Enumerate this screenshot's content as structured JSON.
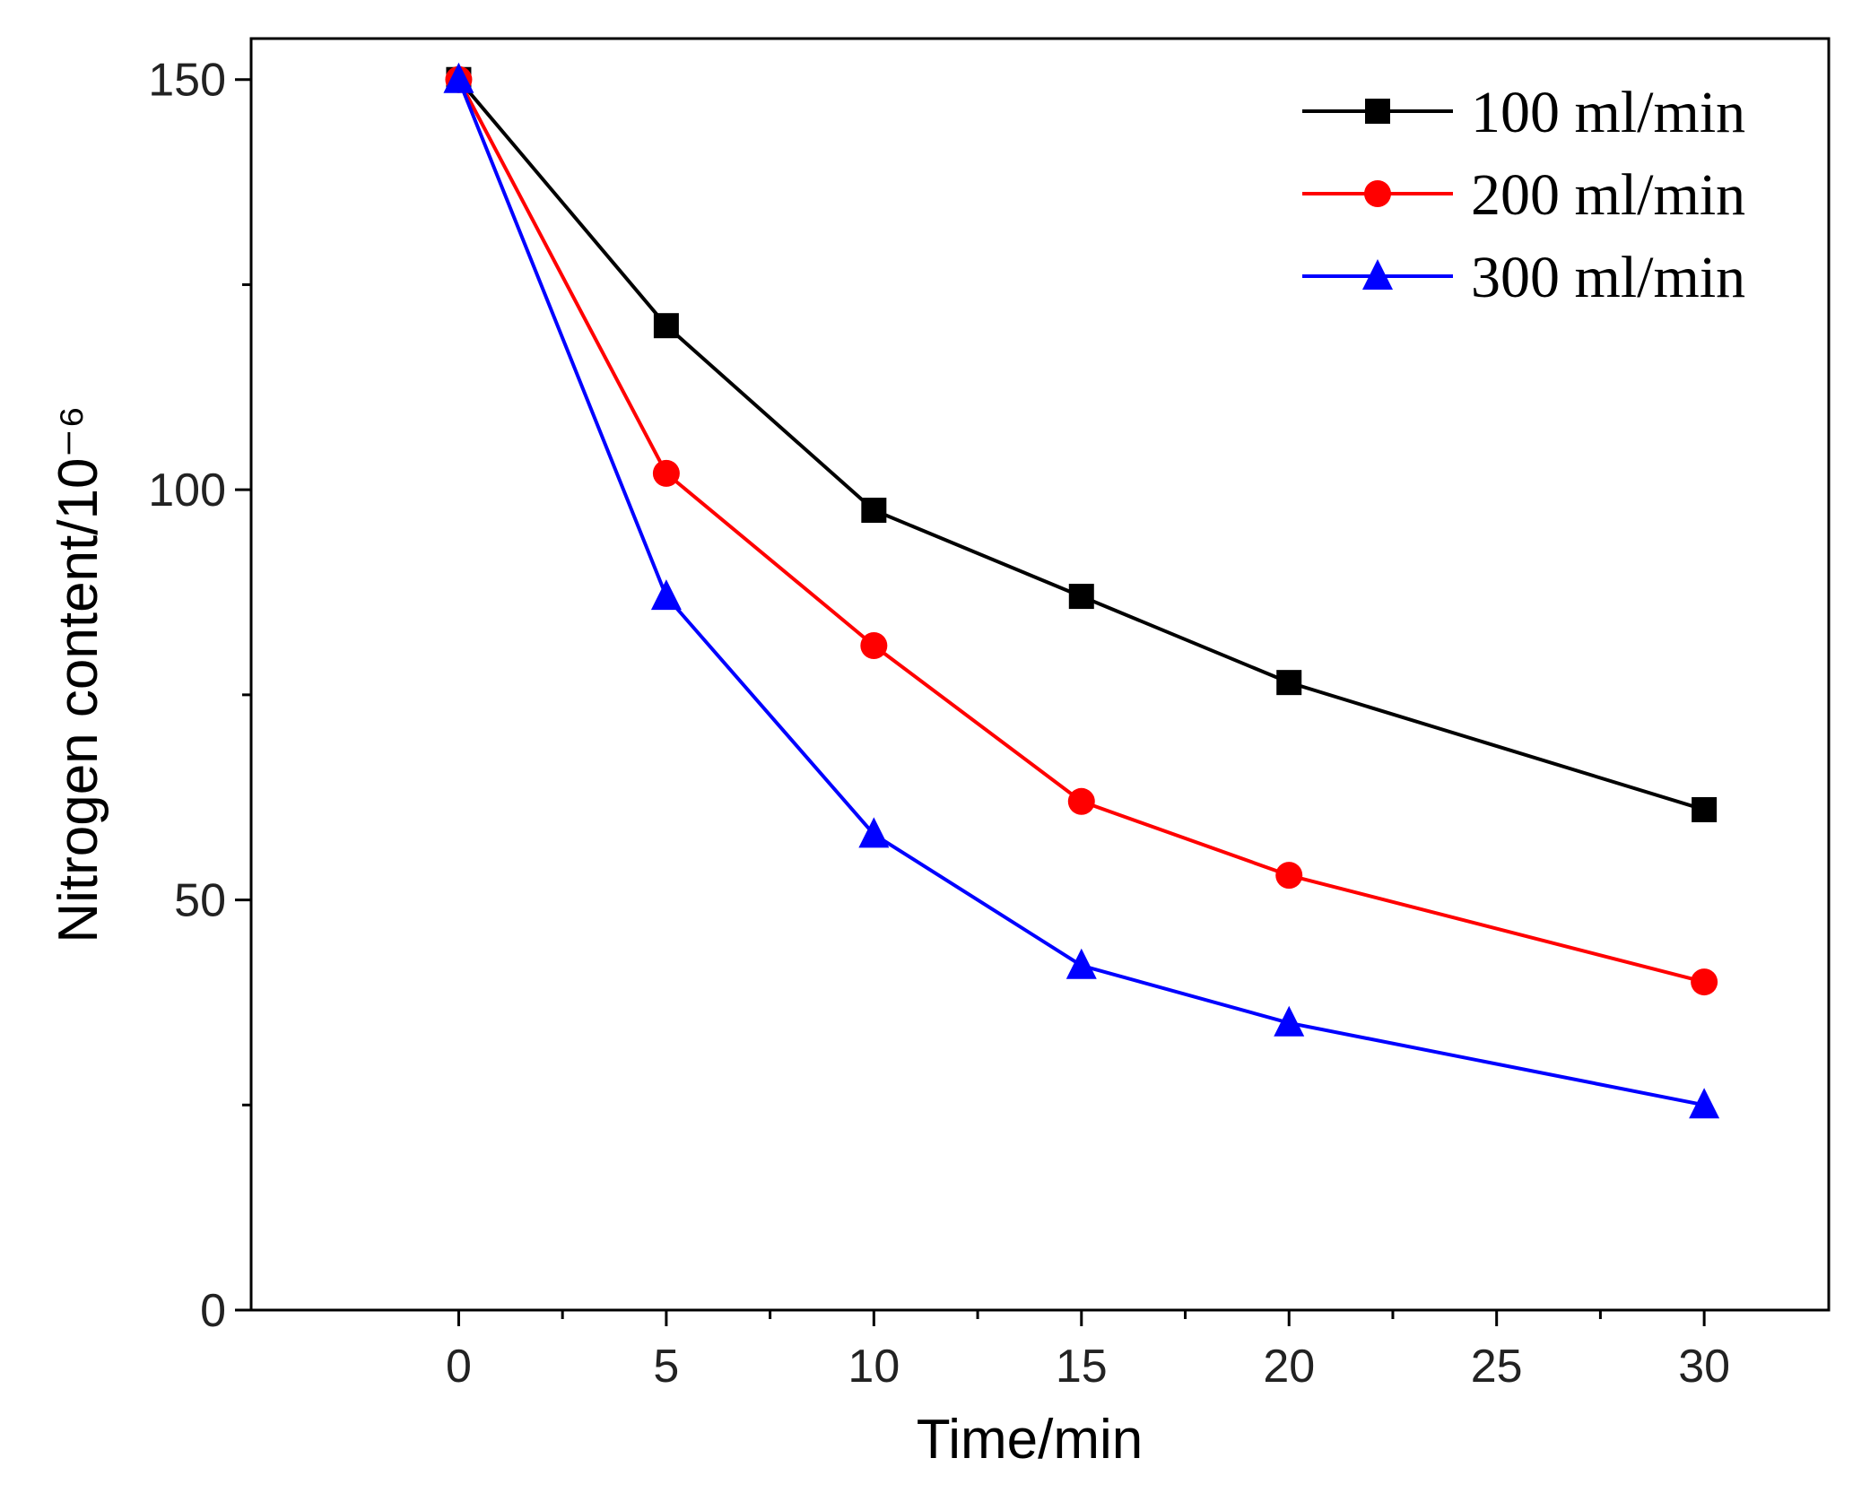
{
  "chart_data": {
    "type": "line",
    "title": "",
    "xlabel": "Time/min",
    "ylabel": "Nitrogen content/10⁻⁶",
    "xlim": [
      -5,
      33
    ],
    "ylim": [
      0,
      155
    ],
    "x_major_ticks": [
      0,
      5,
      10,
      15,
      20,
      25,
      30
    ],
    "x_minor_ticks": [
      2.5,
      7.5,
      12.5,
      17.5,
      22.5,
      27.5
    ],
    "y_labeled_ticks": [
      0,
      50,
      100,
      150
    ],
    "y_minor_ticks": [
      25,
      75,
      125
    ],
    "legend_position": "top-right",
    "grid": false,
    "series": [
      {
        "name": "100 ml/min",
        "color": "#000000",
        "marker": "square",
        "x": [
          0,
          5,
          10,
          15,
          20,
          30
        ],
        "y": [
          150,
          120,
          97.5,
          87,
          76.5,
          61
        ]
      },
      {
        "name": "200 ml/min",
        "color": "#ff0000",
        "marker": "circle",
        "x": [
          0,
          5,
          10,
          15,
          20,
          30
        ],
        "y": [
          150,
          102,
          81,
          62,
          53,
          40
        ]
      },
      {
        "name": "300 ml/min",
        "color": "#0000ff",
        "marker": "triangle",
        "x": [
          0,
          5,
          10,
          15,
          20,
          30
        ],
        "y": [
          150,
          87,
          58,
          42,
          35,
          25
        ]
      }
    ]
  }
}
